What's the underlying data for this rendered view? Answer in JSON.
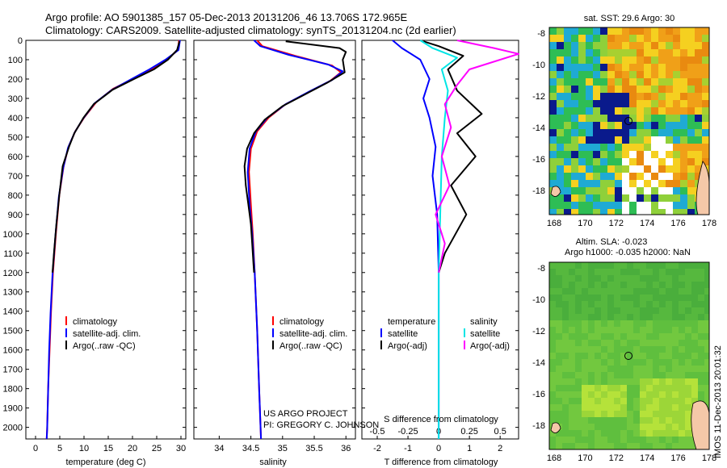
{
  "header": {
    "line1": "Argo profile: AO 5901385_157 05-Dec-2013 20131206_46 13.706S 172.965E",
    "line2": "Climatology: CARS2009. Satellite-adjusted climatology: synTS_20131204.nc (2d earlier)"
  },
  "stamp": "IMOS 11-Dec-2013 20:01:32",
  "chart_data": [
    {
      "type": "line",
      "name": "temperature",
      "xlabel": "temperature (deg C)",
      "ylabel": "",
      "xlim": [
        -2,
        31
      ],
      "ylim": [
        0,
        2060
      ],
      "xticks": [
        0,
        5,
        10,
        15,
        20,
        25,
        30
      ],
      "yticks": [
        0,
        100,
        200,
        300,
        400,
        500,
        600,
        700,
        800,
        900,
        1000,
        1100,
        1200,
        1300,
        1400,
        1500,
        1600,
        1700,
        1800,
        1900,
        2000
      ],
      "legend": [
        "climatology",
        "satellite-adj. clim.",
        "Argo(..raw -QC)"
      ],
      "series": [
        {
          "name": "climatology",
          "color": "#ff0000",
          "points": [
            [
              29.6,
              0
            ],
            [
              29.4,
              50
            ],
            [
              27,
              100
            ],
            [
              24,
              150
            ],
            [
              20,
              200
            ],
            [
              16,
              250
            ],
            [
              12.5,
              320
            ],
            [
              10,
              400
            ],
            [
              8.2,
              470
            ],
            [
              6.8,
              550
            ],
            [
              5.8,
              650
            ],
            [
              4.9,
              800
            ],
            [
              4.2,
              1000
            ],
            [
              3.6,
              1200
            ],
            [
              3.2,
              1400
            ],
            [
              2.9,
              1600
            ],
            [
              2.6,
              1800
            ],
            [
              2.4,
              2000
            ],
            [
              2.3,
              2060
            ]
          ]
        },
        {
          "name": "satellite-adj. clim.",
          "color": "#0000ff",
          "points": [
            [
              29.8,
              0
            ],
            [
              29.5,
              50
            ],
            [
              26.8,
              100
            ],
            [
              23.5,
              150
            ],
            [
              19.8,
              200
            ],
            [
              15.8,
              255
            ],
            [
              12.2,
              325
            ],
            [
              9.8,
              405
            ],
            [
              8.1,
              475
            ],
            [
              6.7,
              555
            ],
            [
              5.7,
              660
            ],
            [
              4.8,
              810
            ],
            [
              4.1,
              1010
            ],
            [
              3.5,
              1210
            ],
            [
              3.1,
              1410
            ],
            [
              2.8,
              1610
            ],
            [
              2.6,
              1810
            ],
            [
              2.4,
              2010
            ],
            [
              2.3,
              2060
            ]
          ]
        },
        {
          "name": "Argo(..raw -QC)",
          "color": "#000000",
          "points": [
            [
              29.7,
              5
            ],
            [
              29.2,
              50
            ],
            [
              27.3,
              100
            ],
            [
              24.4,
              150
            ],
            [
              20.3,
              200
            ],
            [
              15.9,
              255
            ],
            [
              12.0,
              330
            ],
            [
              9.9,
              400
            ],
            [
              8.0,
              480
            ],
            [
              6.9,
              550
            ],
            [
              5.6,
              650
            ],
            [
              4.9,
              800
            ],
            [
              4.3,
              950
            ],
            [
              3.8,
              1100
            ],
            [
              3.5,
              1200
            ]
          ]
        }
      ]
    },
    {
      "type": "line",
      "name": "salinity",
      "xlabel": "salinity",
      "xlim": [
        33.6,
        36.15
      ],
      "ylim": [
        0,
        2060
      ],
      "xticks": [
        34,
        34.5,
        35,
        35.5,
        36
      ],
      "legend": [
        "climatology",
        "satellite-adj. clim.",
        "Argo(..raw -QC)"
      ],
      "annotation": [
        "US ARGO PROJECT",
        "PI: GREGORY C. JOHNSON"
      ],
      "series": [
        {
          "name": "climatology",
          "color": "#ff0000",
          "points": [
            [
              34.6,
              0
            ],
            [
              34.68,
              30
            ],
            [
              35.2,
              80
            ],
            [
              35.78,
              130
            ],
            [
              35.92,
              165
            ],
            [
              35.75,
              210
            ],
            [
              35.4,
              270
            ],
            [
              35.05,
              330
            ],
            [
              34.78,
              400
            ],
            [
              34.6,
              470
            ],
            [
              34.5,
              560
            ],
            [
              34.47,
              680
            ],
            [
              34.5,
              850
            ],
            [
              34.53,
              1000
            ],
            [
              34.56,
              1200
            ],
            [
              34.6,
              1500
            ],
            [
              34.63,
              1800
            ],
            [
              34.66,
              2060
            ]
          ]
        },
        {
          "name": "satellite-adj. clim.",
          "color": "#0000ff",
          "points": [
            [
              34.55,
              0
            ],
            [
              34.65,
              30
            ],
            [
              35.1,
              75
            ],
            [
              35.72,
              125
            ],
            [
              35.95,
              160
            ],
            [
              35.78,
              205
            ],
            [
              35.42,
              265
            ],
            [
              35.05,
              330
            ],
            [
              34.76,
              400
            ],
            [
              34.58,
              470
            ],
            [
              34.48,
              560
            ],
            [
              34.45,
              680
            ],
            [
              34.48,
              850
            ],
            [
              34.52,
              1000
            ],
            [
              34.56,
              1200
            ],
            [
              34.6,
              1500
            ],
            [
              34.63,
              1800
            ],
            [
              34.66,
              2060
            ]
          ]
        },
        {
          "name": "Argo(..raw -QC)",
          "color": "#000000",
          "points": [
            [
              35.05,
              5
            ],
            [
              35.9,
              40
            ],
            [
              36.0,
              60
            ],
            [
              35.95,
              100
            ],
            [
              35.98,
              165
            ],
            [
              35.7,
              220
            ],
            [
              35.35,
              280
            ],
            [
              35.0,
              340
            ],
            [
              34.72,
              410
            ],
            [
              34.55,
              480
            ],
            [
              34.44,
              560
            ],
            [
              34.4,
              650
            ],
            [
              34.42,
              750
            ],
            [
              34.46,
              850
            ],
            [
              34.5,
              950
            ],
            [
              34.52,
              1050
            ],
            [
              34.54,
              1150
            ],
            [
              34.55,
              1200
            ]
          ]
        }
      ]
    },
    {
      "type": "line",
      "name": "difference",
      "xlabel_top": "S difference from climatology",
      "xlabel": "T difference from climatology",
      "xlim": [
        -2.5,
        2.6
      ],
      "ylim": [
        0,
        2060
      ],
      "xticks_T": [
        -2,
        -1,
        0,
        1,
        2
      ],
      "xticks_S": [
        "-0.5",
        "-0.25",
        "0",
        "0.25",
        "0.5"
      ],
      "legend_temperature": [
        "temperature",
        "satellite",
        "Argo(-adj)"
      ],
      "legend_salinity": [
        "salinity",
        "satellite",
        "Argo(-adj)"
      ],
      "series": [
        {
          "name": "temperature satellite",
          "color": "#0000ff",
          "points": [
            [
              -1.5,
              0
            ],
            [
              -1.2,
              40
            ],
            [
              -0.6,
              100
            ],
            [
              -0.3,
              200
            ],
            [
              -0.5,
              300
            ],
            [
              -0.3,
              400
            ],
            [
              -0.1,
              550
            ],
            [
              -0.2,
              700
            ],
            [
              -0.05,
              900
            ],
            [
              0,
              1200
            ],
            [
              0,
              2060
            ]
          ]
        },
        {
          "name": "temperature Argo(-adj)",
          "color": "#000000",
          "points": [
            [
              -0.5,
              5
            ],
            [
              0,
              30
            ],
            [
              0.8,
              80
            ],
            [
              0.3,
              150
            ],
            [
              0.6,
              260
            ],
            [
              1.4,
              380
            ],
            [
              0.6,
              480
            ],
            [
              1.2,
              600
            ],
            [
              0.4,
              750
            ],
            [
              0.9,
              900
            ],
            [
              0.2,
              1100
            ],
            [
              0,
              1200
            ]
          ]
        },
        {
          "name": "salinity satellite",
          "color": "#00e5e5",
          "points": [
            [
              -0.6,
              0
            ],
            [
              -0.2,
              40
            ],
            [
              0.6,
              90
            ],
            [
              0.1,
              150
            ],
            [
              0.3,
              260
            ],
            [
              0.2,
              400
            ],
            [
              0.1,
              600
            ],
            [
              0.05,
              900
            ],
            [
              0,
              1200
            ],
            [
              0,
              2060
            ]
          ]
        },
        {
          "name": "salinity Argo(-adj)",
          "color": "#ff00ff",
          "points": [
            [
              0.6,
              0
            ],
            [
              1.8,
              40
            ],
            [
              2.6,
              70
            ],
            [
              1.0,
              150
            ],
            [
              0.6,
              230
            ],
            [
              0.2,
              330
            ],
            [
              0.4,
              450
            ],
            [
              0.1,
              600
            ],
            [
              0.35,
              750
            ],
            [
              -0.1,
              900
            ],
            [
              0.2,
              1050
            ],
            [
              0,
              1200
            ]
          ]
        }
      ]
    }
  ],
  "maps": {
    "sst": {
      "title": "sat. SST: 29.6 Argo: 30",
      "xticks": [
        "168",
        "170",
        "172",
        "174",
        "176",
        "178"
      ],
      "yticks": [
        "-8",
        "-10",
        "-12",
        "-14",
        "-16",
        "-18"
      ]
    },
    "sla": {
      "title1": "Altim. SLA: -0.023",
      "title2": "Argo h1000: -0.035 h2000: NaN",
      "xticks": [
        "168",
        "170",
        "172",
        "174",
        "176",
        "178"
      ],
      "yticks": [
        "-8",
        "-10",
        "-12",
        "-14",
        "-16",
        "-18"
      ]
    }
  }
}
